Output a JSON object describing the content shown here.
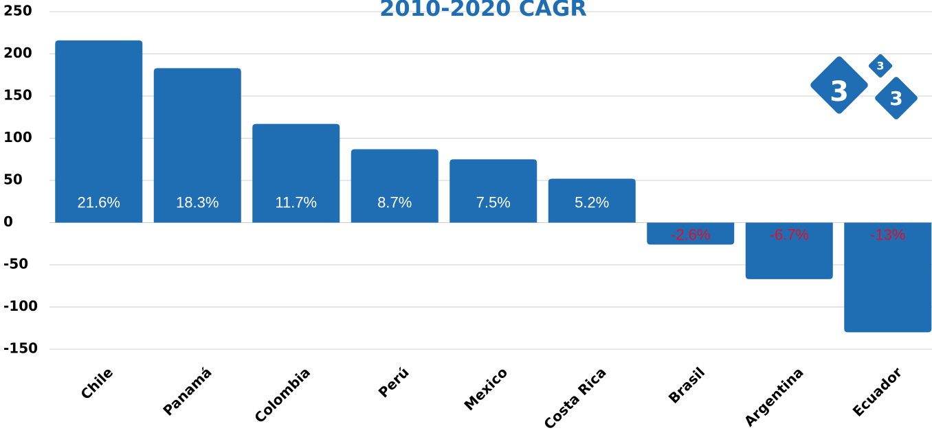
{
  "chart_data": {
    "type": "bar",
    "title": "2010-2020 CAGR",
    "categories": [
      "Chile",
      "Panamá",
      "Colombia",
      "Perú",
      "Mexico",
      "Costa Rica",
      "Brasil",
      "Argentina",
      "Ecuador"
    ],
    "values": [
      216,
      183,
      117,
      87,
      75,
      52,
      -26,
      -67,
      -130
    ],
    "value_labels": [
      "21.6%",
      "18.3%",
      "11.7%",
      "8.7%",
      "7.5%",
      "5.2%",
      "-2.6%",
      "-6.7%",
      "-13%"
    ],
    "color": "#1f6db3",
    "positive_label_color": "#ffffff",
    "negative_label_color": "#e0102a",
    "ylim": [
      -150,
      250
    ],
    "yticks": [
      -150,
      -100,
      -50,
      0,
      50,
      100,
      150,
      200,
      250
    ],
    "grid": true
  },
  "logo": {
    "texts": [
      "3",
      "3",
      "3"
    ]
  }
}
